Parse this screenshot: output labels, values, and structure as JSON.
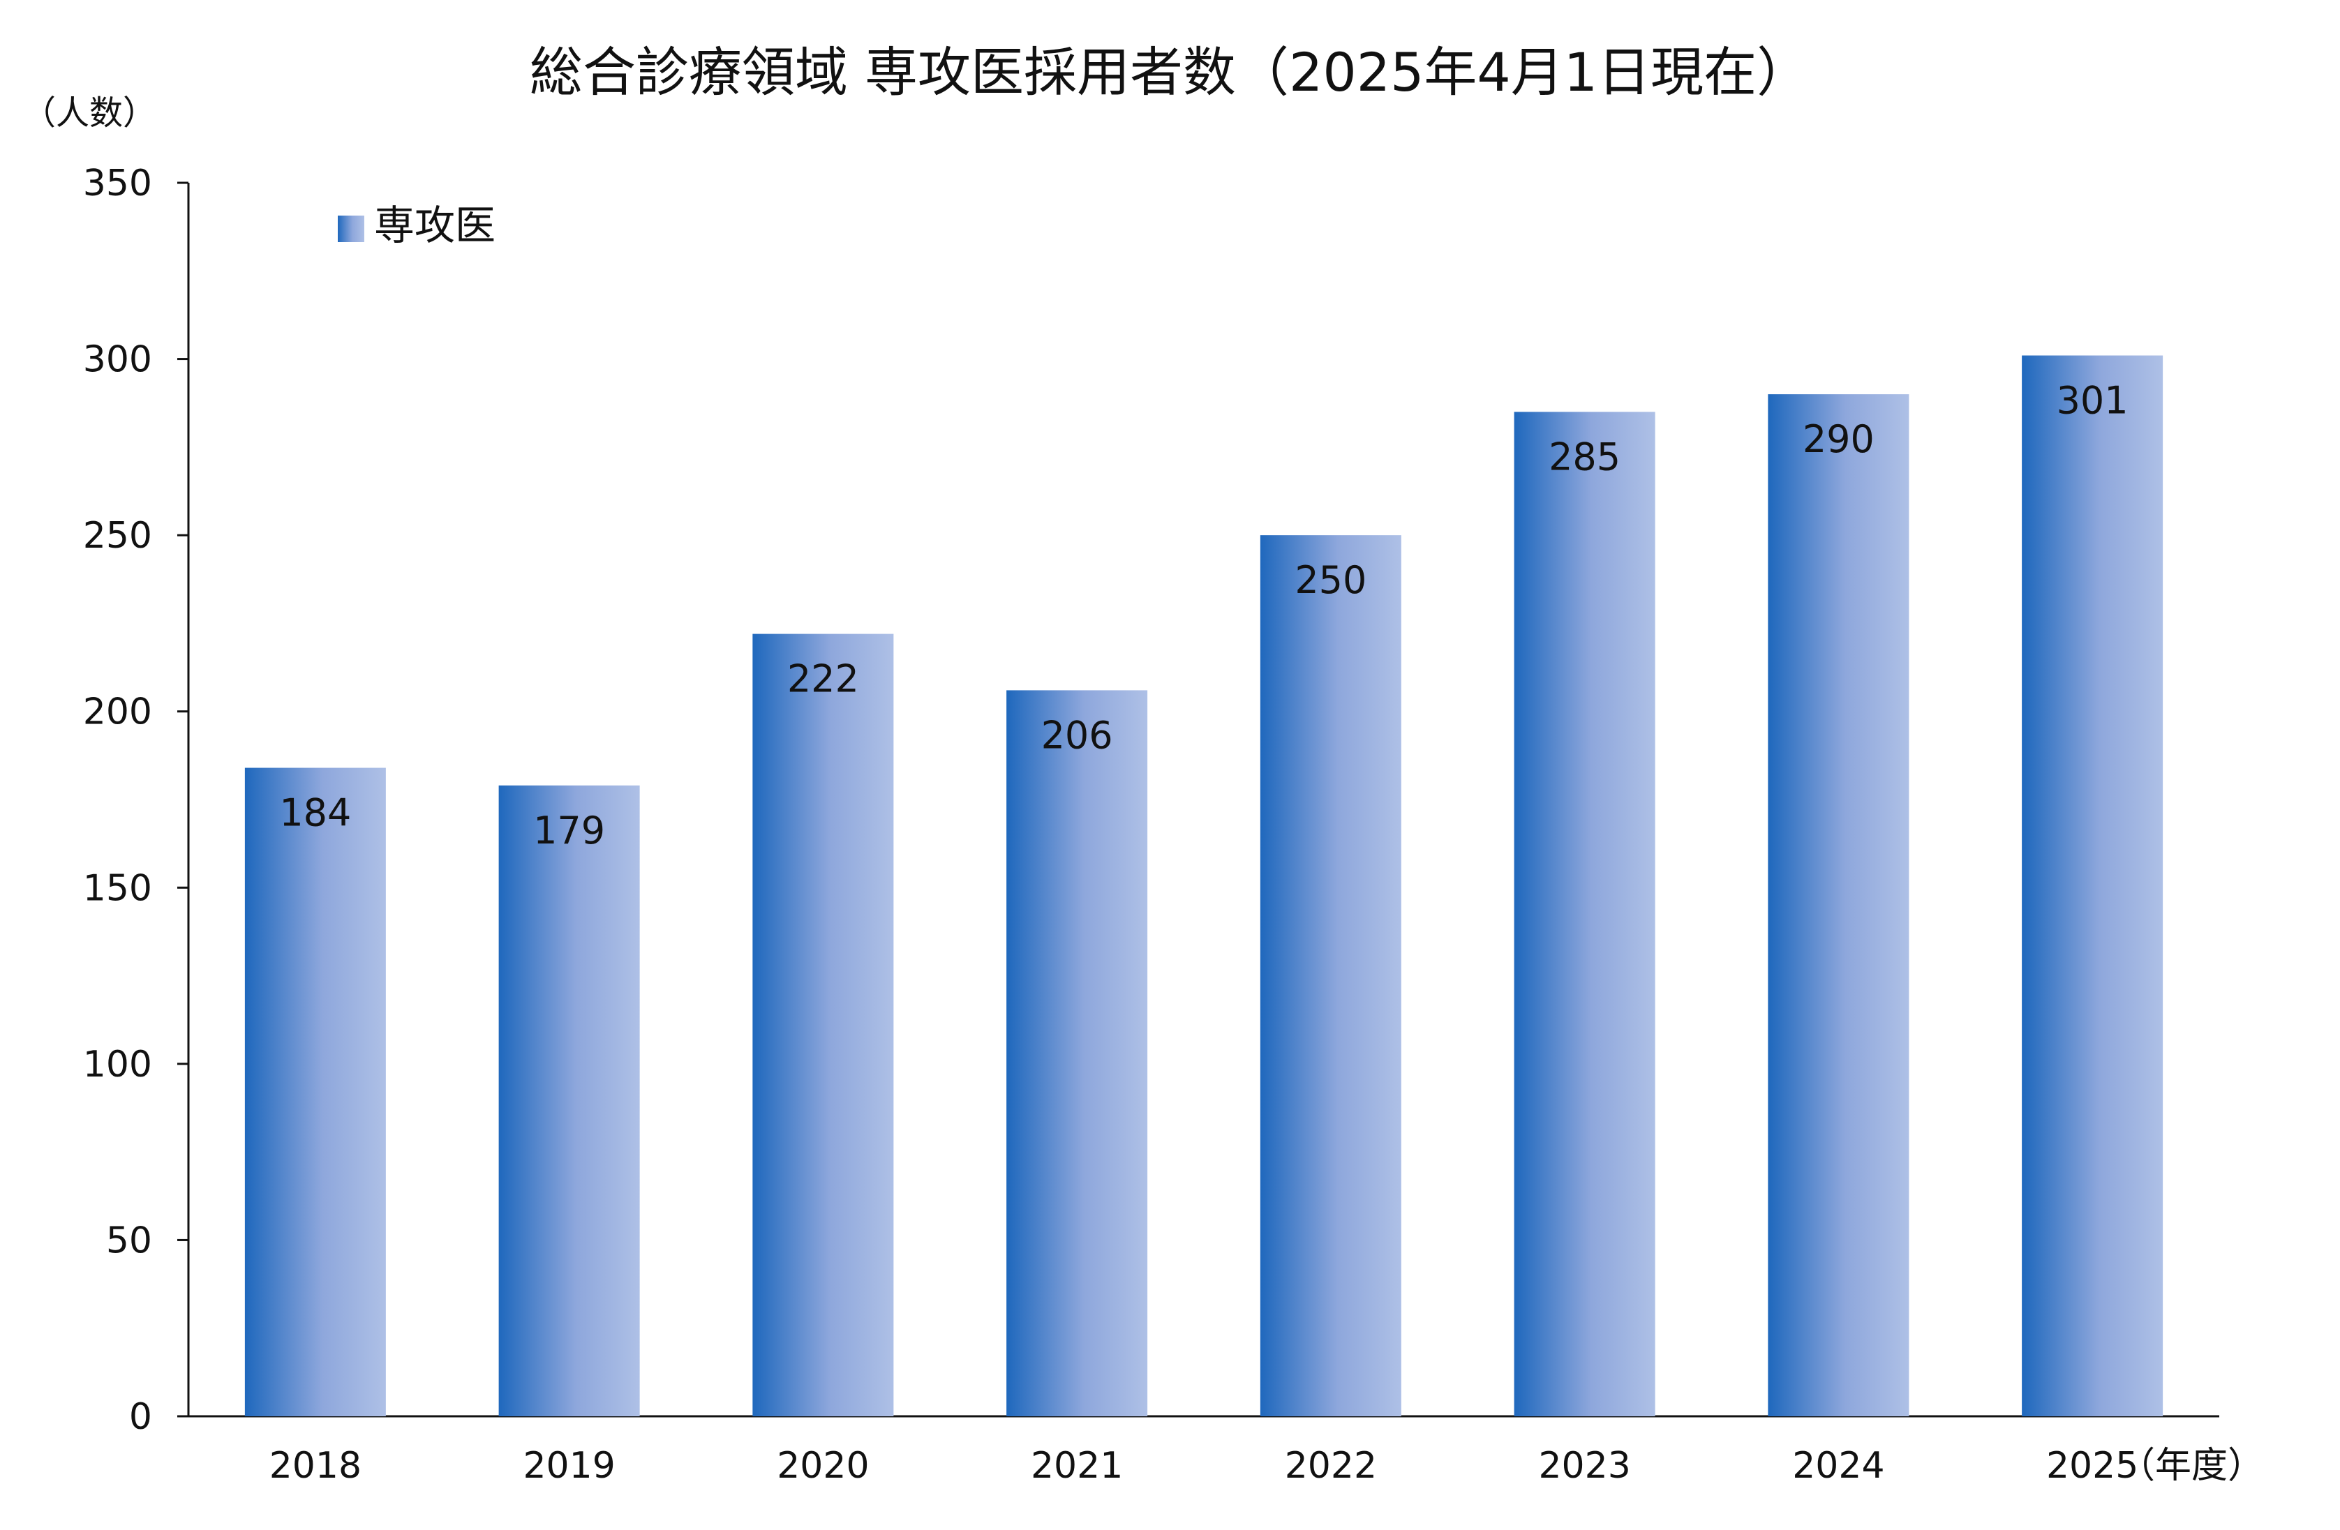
{
  "chart_data": {
    "type": "bar",
    "title": "総合診療領域 専攻医採用者数（2025年4月1日現在）",
    "ylabel": "（人数）",
    "xlabel": "（年度）",
    "categories": [
      "2018",
      "2019",
      "2020",
      "2021",
      "2022",
      "2023",
      "2024",
      "2025"
    ],
    "series": [
      {
        "name": "専攻医",
        "values": [
          184,
          179,
          222,
          206,
          250,
          285,
          290,
          301
        ]
      }
    ],
    "ylim": [
      0,
      350
    ],
    "yticks": [
      0,
      50,
      100,
      150,
      200,
      250,
      300,
      350
    ],
    "grid": false,
    "legend": "top-left",
    "data_labels": true,
    "colors": {
      "bar_dark": "#1f68bd",
      "bar_light": "#aec0e6",
      "axis": "#111111"
    }
  }
}
